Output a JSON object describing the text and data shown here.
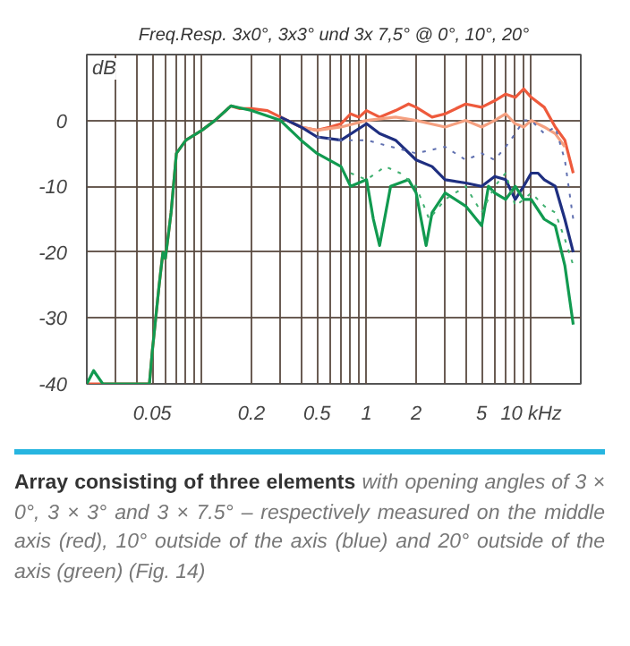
{
  "chart_data": {
    "type": "line",
    "title": "Freq.Resp. 3x0°, 3x3° und 3x 7,5° @ 0°, 10°, 20°",
    "ylabel": "dB",
    "log": "x",
    "grid": true,
    "line_style": "solid",
    "marker": "none",
    "xlim": [
      0.02,
      20
    ],
    "ylim": [
      -40,
      10
    ],
    "xticks": [
      {
        "value": 0.02,
        "label": null
      },
      {
        "value": 0.03,
        "label": null
      },
      {
        "value": 0.04,
        "label": null
      },
      0.05,
      {
        "value": 0.06,
        "label": null
      },
      {
        "value": 0.07,
        "label": null
      },
      {
        "value": 0.08,
        "label": null
      },
      {
        "value": 0.09,
        "label": null
      },
      {
        "value": 0.1,
        "label": null
      },
      0.2,
      {
        "value": 0.3,
        "label": null
      },
      {
        "value": 0.4,
        "label": null
      },
      0.5,
      {
        "value": 0.6,
        "label": null
      },
      {
        "value": 0.7,
        "label": null
      },
      {
        "value": 0.8,
        "label": null
      },
      {
        "value": 0.9,
        "label": null
      },
      1,
      2,
      {
        "value": 3,
        "label": null
      },
      {
        "value": 4,
        "label": null
      },
      5,
      {
        "value": 6,
        "label": null
      },
      {
        "value": 7,
        "label": null
      },
      {
        "value": 8,
        "label": null
      },
      {
        "value": 9,
        "label": null
      },
      {
        "value": 10,
        "label": "10 kHz"
      },
      {
        "value": 20,
        "label": null
      }
    ],
    "yticks": [
      -40,
      -30,
      -20,
      -10,
      0,
      {
        "value": 10,
        "label": null
      }
    ],
    "series": [
      {
        "color": "#ee5a3c",
        "x": [
          0.02,
          0.048,
          0.05,
          0.055,
          0.058,
          0.06,
          0.065,
          0.07,
          0.08,
          0.1,
          0.12,
          0.15,
          0.17,
          0.2,
          0.25,
          0.3,
          0.4,
          0.5,
          0.6,
          0.7,
          0.8,
          0.9,
          1,
          1.2,
          1.5,
          1.8,
          2,
          2.5,
          3,
          4,
          5,
          6,
          7,
          8,
          9,
          10,
          12,
          14,
          16,
          18
        ],
        "values": [
          -40,
          -40,
          -35,
          -25,
          -20,
          -21,
          -14,
          -5,
          -3,
          -1.5,
          0,
          2.2,
          1.8,
          1.8,
          1.5,
          0.5,
          -1,
          -1.5,
          -1,
          -0.5,
          1,
          0.5,
          1.5,
          0.5,
          1.5,
          2.5,
          2,
          0.5,
          1,
          2.5,
          2,
          3,
          4,
          3.5,
          4.8,
          3.5,
          2,
          -1,
          -3,
          -8
        ]
      },
      {
        "color": "#f5a080",
        "x": [
          0.3,
          0.4,
          0.5,
          0.7,
          1,
          1.5,
          2,
          3,
          4,
          5,
          6,
          7,
          8,
          9,
          10,
          12,
          14,
          16
        ],
        "values": [
          0.5,
          -1,
          -1.5,
          -1,
          0,
          0.5,
          0,
          -1,
          0,
          -1,
          0,
          1,
          -0.5,
          -1,
          0,
          -1,
          -2,
          -4
        ]
      },
      {
        "color": "#1f2f80",
        "x": [
          0.3,
          0.4,
          0.5,
          0.7,
          1,
          1.2,
          1.5,
          2,
          2.5,
          3,
          4,
          5,
          6,
          7,
          8,
          9,
          10,
          11,
          12,
          14,
          16,
          18
        ],
        "values": [
          0.5,
          -1,
          -2.5,
          -3,
          -0.5,
          -2,
          -3,
          -6,
          -7,
          -9,
          -9.5,
          -10,
          -8.5,
          -9,
          -12,
          -10,
          -8,
          -8,
          -9,
          -10,
          -15,
          -20
        ]
      },
      {
        "color": "#6070b0",
        "line_style": "dotted",
        "x": [
          0.5,
          0.7,
          1,
          2,
          3,
          4,
          5,
          6,
          7,
          8,
          9,
          10,
          12,
          14,
          16,
          18
        ],
        "values": [
          -2.5,
          -3,
          -3,
          -5,
          -4,
          -6,
          -5,
          -6,
          -4,
          -2,
          0,
          0,
          -2,
          -1,
          -6,
          -15
        ]
      },
      {
        "color": "#119a50",
        "x": [
          0.02,
          0.022,
          0.025,
          0.048,
          0.05,
          0.055,
          0.058,
          0.06,
          0.065,
          0.07,
          0.08,
          0.1,
          0.12,
          0.15,
          0.2,
          0.3,
          0.4,
          0.5,
          0.7,
          0.8,
          1,
          1.1,
          1.2,
          1.4,
          1.8,
          2,
          2.3,
          2.5,
          3,
          4,
          5,
          5.5,
          6,
          7,
          8,
          9,
          10,
          12,
          14,
          16,
          18
        ],
        "values": [
          -40,
          -38,
          -40,
          -40,
          -35,
          -25,
          -20,
          -21,
          -14,
          -5,
          -3,
          -1.5,
          0,
          2.2,
          1.5,
          0,
          -3,
          -5,
          -7,
          -10,
          -9,
          -15,
          -19,
          -10,
          -9,
          -11,
          -19,
          -14,
          -11,
          -13,
          -16,
          -10,
          -11,
          -12,
          -10,
          -12,
          -12,
          -15,
          -16,
          -22,
          -31
        ]
      },
      {
        "color": "#40b070",
        "line_style": "dotted",
        "x": [
          0.8,
          1,
          1.3,
          1.6,
          2,
          2.4,
          3,
          4,
          5,
          6,
          7,
          8,
          9,
          10,
          12,
          14,
          16,
          18
        ],
        "values": [
          -8,
          -9,
          -7,
          -8,
          -10,
          -15,
          -12,
          -10,
          -14,
          -10,
          -8,
          -13,
          -12,
          -11,
          -13,
          -14,
          -18,
          -22
        ]
      }
    ],
    "annotations": [
      "Array consisting of three elements",
      "with opening angles of 3 × 0°, 3 × 3° and 3 × 7.5° – respectively measured on the middle axis (red), 10° outside of the axis (blue) and 20° outside of the axis (green) (Fig. 14)"
    ]
  }
}
